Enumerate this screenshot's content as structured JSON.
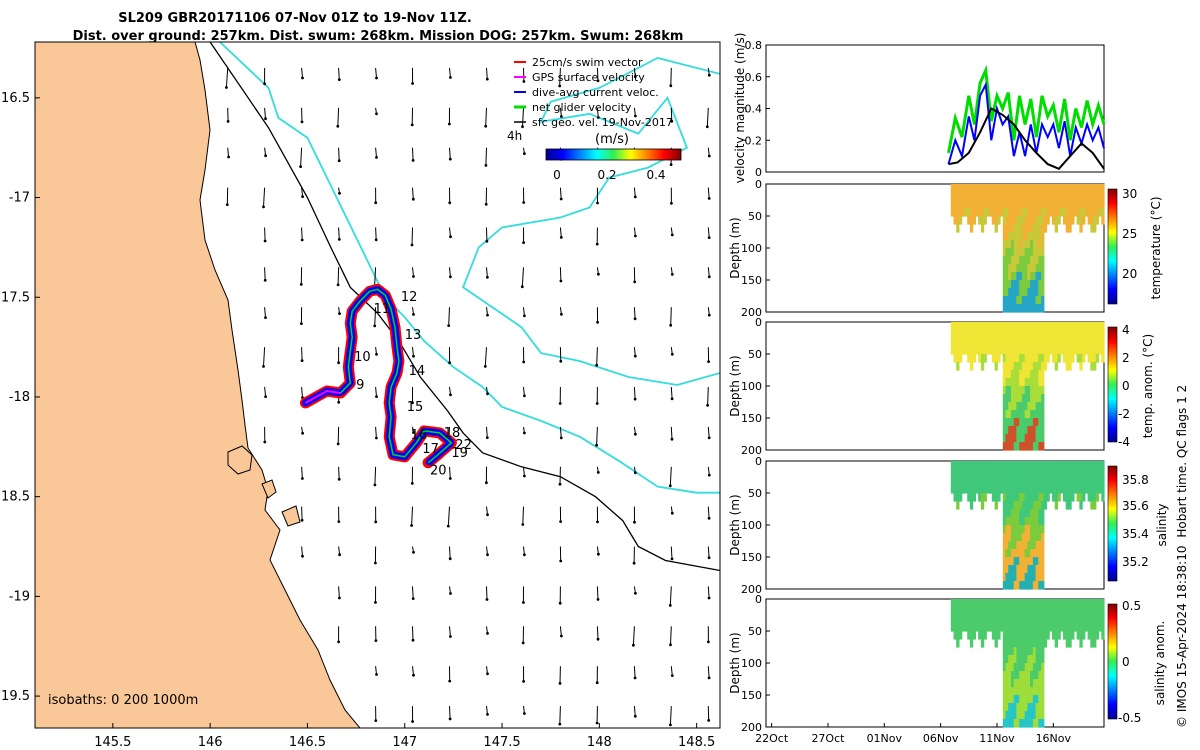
{
  "header": {
    "line1": "SL209 GBR20171106 07-Nov 01Z to 19-Nov 11Z.",
    "line2": "Dist. over ground: 257km. Dist. swum: 268km. Mission DOG: 257km. Swum: 268km"
  },
  "colors": {
    "land": "#FAC898",
    "coast_line": "#000000",
    "isobath_cyan": "#33DDDD",
    "track_red": "#FF0000",
    "track_blue": "#0000FF",
    "track_green": "#00DD00",
    "track_magenta": "#FF00FF"
  },
  "chart_data": [
    {
      "id": "map",
      "type": "scatter",
      "title": "SL209 GBR20171106 glider track map",
      "xlabel": "Longitude",
      "ylabel": "Latitude",
      "xlim": [
        145.1,
        148.62
      ],
      "ylim": [
        -19.66,
        -16.22
      ],
      "xticks": [
        145.5,
        146,
        146.5,
        147,
        147.5,
        148,
        148.5
      ],
      "xtick_labels": [
        "145.5",
        "146",
        "146.5",
        "147",
        "147.5",
        "148",
        "148.5"
      ],
      "yticks": [
        -16.5,
        -17,
        -17.5,
        -18,
        -18.5,
        -19,
        -19.5
      ],
      "ytick_labels": [
        "16.5",
        "-17",
        "17.5",
        "-18",
        "18.5",
        "-19",
        "19.5"
      ],
      "legend": {
        "placement": "top-right",
        "entries": [
          "25cm/s swim vector",
          "GPS surface velocity",
          "dive-avg current veloc.",
          "net glider velocity",
          "sfc geo. vel. 19-Nov-2017"
        ],
        "colors": [
          "#FF0000",
          "#FF00FF",
          "#0000FF",
          "#00DD00",
          "#000000"
        ]
      },
      "colorbar": {
        "label": "(m/s)",
        "ticks": [
          "0",
          "0.2",
          "0.4"
        ],
        "range": [
          0,
          0.5
        ]
      },
      "annotation_4h": "4h",
      "isobath_note": "isobaths: 0   200  1000m",
      "track": [
        [
          146.49,
          -18.03
        ],
        [
          146.6,
          -17.97
        ],
        [
          146.67,
          -17.98
        ],
        [
          146.72,
          -17.93
        ],
        [
          146.71,
          -17.85
        ],
        [
          146.72,
          -17.77
        ],
        [
          146.73,
          -17.7
        ],
        [
          146.72,
          -17.63
        ],
        [
          146.73,
          -17.57
        ],
        [
          146.77,
          -17.52
        ],
        [
          146.82,
          -17.47
        ],
        [
          146.86,
          -17.46
        ],
        [
          146.9,
          -17.49
        ],
        [
          146.93,
          -17.56
        ],
        [
          146.95,
          -17.65
        ],
        [
          146.96,
          -17.75
        ],
        [
          146.97,
          -17.82
        ],
        [
          146.96,
          -17.88
        ],
        [
          146.93,
          -17.95
        ],
        [
          146.92,
          -18.03
        ],
        [
          146.93,
          -18.1
        ],
        [
          146.92,
          -18.2
        ],
        [
          146.94,
          -18.29
        ],
        [
          147.0,
          -18.3
        ],
        [
          147.06,
          -18.23
        ],
        [
          147.1,
          -18.17
        ],
        [
          147.18,
          -18.18
        ],
        [
          147.24,
          -18.23
        ],
        [
          147.17,
          -18.29
        ],
        [
          147.12,
          -18.33
        ]
      ],
      "day_labels": [
        {
          "text": "9",
          "lon": 146.75,
          "lat": -17.96
        },
        {
          "text": "10",
          "lon": 146.74,
          "lat": -17.82
        },
        {
          "text": "11",
          "lon": 146.84,
          "lat": -17.58
        },
        {
          "text": "12",
          "lon": 146.98,
          "lat": -17.52
        },
        {
          "text": "13",
          "lon": 147.0,
          "lat": -17.71
        },
        {
          "text": "14",
          "lon": 147.02,
          "lat": -17.89
        },
        {
          "text": "15",
          "lon": 147.01,
          "lat": -18.07
        },
        {
          "text": "16",
          "lon": 147.03,
          "lat": -18.21
        },
        {
          "text": "17",
          "lon": 147.09,
          "lat": -18.28
        },
        {
          "text": "18",
          "lon": 147.2,
          "lat": -18.2
        },
        {
          "text": "19",
          "lon": 147.24,
          "lat": -18.3
        },
        {
          "text": "20",
          "lon": 147.13,
          "lat": -18.39
        },
        {
          "text": "22",
          "lon": 147.26,
          "lat": -18.26
        }
      ],
      "shelf_line": [
        [
          146.0,
          -16.22
        ],
        [
          146.3,
          -16.65
        ],
        [
          146.5,
          -17.0
        ],
        [
          146.62,
          -17.25
        ],
        [
          146.72,
          -17.45
        ],
        [
          146.86,
          -17.58
        ],
        [
          146.97,
          -17.72
        ],
        [
          147.08,
          -17.9
        ],
        [
          147.22,
          -18.07
        ],
        [
          147.3,
          -18.18
        ],
        [
          147.4,
          -18.28
        ],
        [
          147.6,
          -18.35
        ],
        [
          147.8,
          -18.4
        ],
        [
          147.98,
          -18.5
        ],
        [
          148.12,
          -18.62
        ],
        [
          148.2,
          -18.75
        ],
        [
          148.34,
          -18.82
        ],
        [
          148.62,
          -18.87
        ]
      ],
      "isobath_200": [
        [
          146.05,
          -16.22
        ],
        [
          146.3,
          -16.45
        ],
        [
          146.35,
          -16.6
        ],
        [
          146.5,
          -16.7
        ],
        [
          146.6,
          -16.9
        ],
        [
          146.7,
          -17.1
        ],
        [
          146.8,
          -17.3
        ],
        [
          146.9,
          -17.5
        ],
        [
          147.0,
          -17.6
        ],
        [
          147.1,
          -17.72
        ],
        [
          147.25,
          -17.85
        ],
        [
          147.4,
          -17.95
        ],
        [
          147.5,
          -18.05
        ],
        [
          147.7,
          -18.12
        ],
        [
          147.9,
          -18.2
        ],
        [
          148.1,
          -18.32
        ],
        [
          148.3,
          -18.45
        ],
        [
          148.5,
          -18.48
        ],
        [
          148.62,
          -18.48
        ]
      ],
      "isobath_1000": [
        [
          148.62,
          -16.38
        ],
        [
          148.3,
          -16.3
        ],
        [
          148.0,
          -16.45
        ],
        [
          147.75,
          -16.52
        ],
        [
          147.7,
          -16.62
        ],
        [
          147.95,
          -16.58
        ],
        [
          148.2,
          -16.68
        ],
        [
          148.35,
          -16.5
        ],
        [
          148.45,
          -16.75
        ],
        [
          148.25,
          -16.85
        ],
        [
          148.05,
          -16.9
        ],
        [
          147.95,
          -17.05
        ],
        [
          147.8,
          -17.1
        ],
        [
          147.5,
          -17.15
        ],
        [
          147.38,
          -17.25
        ],
        [
          147.3,
          -17.45
        ],
        [
          147.45,
          -17.55
        ],
        [
          147.6,
          -17.65
        ],
        [
          147.7,
          -17.78
        ],
        [
          147.9,
          -17.82
        ],
        [
          148.15,
          -17.9
        ],
        [
          148.4,
          -17.94
        ],
        [
          148.62,
          -17.88
        ]
      ],
      "legend_isobath_text": "isobaths: 0   200  1000m"
    },
    {
      "id": "velocity",
      "type": "line",
      "ylabel": "velocity magnitude (m/s)",
      "ylim": [
        0,
        0.8
      ],
      "yticks": [
        "0",
        "0.2",
        "0.4",
        "0.6",
        "0.8"
      ],
      "xlim_days": [
        0,
        30
      ],
      "series": [
        {
          "name": "net glider velocity",
          "color": "#00DD00",
          "x": [
            16.2,
            16.8,
            17.4,
            18.0,
            18.5,
            19.0,
            19.5,
            20.0,
            20.5,
            21.0,
            21.5,
            22.0,
            22.5,
            23.0,
            23.5,
            24.0,
            24.5,
            25.0,
            25.5,
            26.0,
            26.5,
            27.0,
            27.5,
            28.0,
            28.5,
            29.0,
            29.5,
            30.0
          ],
          "values": [
            0.12,
            0.34,
            0.22,
            0.48,
            0.3,
            0.56,
            0.64,
            0.32,
            0.48,
            0.4,
            0.5,
            0.2,
            0.48,
            0.3,
            0.46,
            0.22,
            0.48,
            0.35,
            0.42,
            0.25,
            0.46,
            0.2,
            0.4,
            0.28,
            0.45,
            0.3,
            0.42,
            0.3
          ]
        },
        {
          "name": "dive-avg current veloc.",
          "color": "#0000FF",
          "x": [
            16.2,
            16.8,
            17.4,
            18.0,
            18.5,
            19.0,
            19.5,
            20.0,
            20.5,
            21.0,
            21.5,
            22.0,
            22.5,
            23.0,
            23.5,
            24.0,
            24.5,
            25.0,
            25.5,
            26.0,
            26.5,
            27.0,
            27.5,
            28.0,
            28.5,
            29.0,
            29.5,
            30.0
          ],
          "values": [
            0.05,
            0.2,
            0.1,
            0.35,
            0.2,
            0.48,
            0.55,
            0.2,
            0.4,
            0.3,
            0.35,
            0.1,
            0.25,
            0.1,
            0.3,
            0.12,
            0.3,
            0.22,
            0.3,
            0.15,
            0.32,
            0.1,
            0.28,
            0.18,
            0.3,
            0.2,
            0.28,
            0.15
          ]
        },
        {
          "name": "sfc geo. vel.",
          "color": "#000000",
          "x": [
            16.2,
            17.0,
            18.0,
            19.0,
            20.0,
            21.0,
            22.0,
            23.0,
            24.0,
            25.0,
            26.0,
            27.0,
            28.0,
            29.0,
            30.0
          ],
          "values": [
            0.05,
            0.06,
            0.12,
            0.25,
            0.4,
            0.36,
            0.3,
            0.2,
            0.12,
            0.05,
            0.02,
            0.1,
            0.18,
            0.12,
            0.02
          ]
        }
      ]
    },
    {
      "id": "temperature",
      "type": "heatmap",
      "ylabel": "Depth (m)",
      "colorbar_label": "temperature (°C)",
      "colorbar_ticks": [
        "30",
        "25",
        "20"
      ],
      "range": [
        16,
        30
      ],
      "ylim": [
        0,
        200
      ],
      "yticks": [
        "0",
        "50",
        "100",
        "150",
        "200"
      ]
    },
    {
      "id": "temp_anom",
      "type": "heatmap",
      "ylabel": "Depth (m)",
      "colorbar_label": "temp. anom. (°C)",
      "colorbar_ticks": [
        "4",
        "2",
        "0",
        "-2",
        "-4"
      ],
      "range": [
        -4,
        4
      ],
      "ylim": [
        0,
        200
      ],
      "yticks": [
        "0",
        "50",
        "100",
        "150",
        "200"
      ],
      "side_text": "Hobart time. QC flags 1  2"
    },
    {
      "id": "salinity",
      "type": "heatmap",
      "ylabel": "Depth (m)",
      "colorbar_label": "salinity",
      "colorbar_ticks": [
        "35.8",
        "35.6",
        "35.4",
        "35.2"
      ],
      "range": [
        35.1,
        35.9
      ],
      "ylim": [
        0,
        200
      ],
      "yticks": [
        "0",
        "50",
        "100",
        "150",
        "200"
      ]
    },
    {
      "id": "sal_anom",
      "type": "heatmap",
      "ylabel": "Depth (m)",
      "colorbar_label": "salinity anom.",
      "colorbar_ticks": [
        "0.5",
        "0",
        "-0.5"
      ],
      "range": [
        -0.5,
        0.5
      ],
      "ylim": [
        0,
        200
      ],
      "yticks": [
        "0",
        "50",
        "100",
        "150",
        "200"
      ],
      "xtick_labels": [
        "22Oct",
        "27Oct",
        "01Nov",
        "06Nov",
        "11Nov",
        "16Nov"
      ],
      "credit": "© IMOS 15-Apr-2024 18:38:10"
    }
  ]
}
